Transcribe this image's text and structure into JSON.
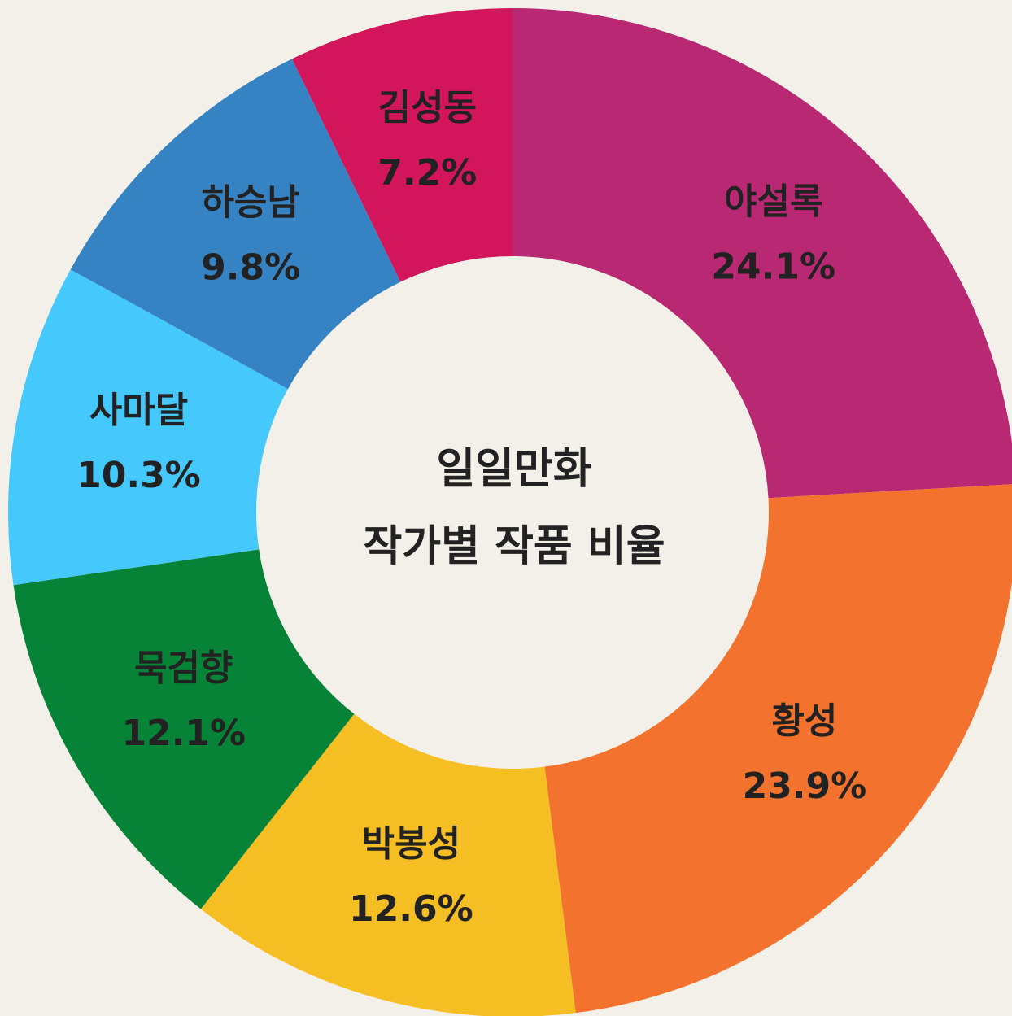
{
  "chart_data": {
    "type": "donut",
    "title_lines": [
      "일일만화",
      "작가별 작품 비율"
    ],
    "categories": [
      "야설록",
      "황성",
      "박봉성",
      "묵검향",
      "사마달",
      "하승남",
      "김성동"
    ],
    "values": [
      24.1,
      23.9,
      12.6,
      12.1,
      10.3,
      9.8,
      7.2
    ],
    "value_labels": [
      "24.1%",
      "23.9%",
      "12.6%",
      "12.1%",
      "10.3%",
      "9.8%",
      "7.2%"
    ],
    "colors": [
      "#b92873",
      "#f2722e",
      "#f5be22",
      "#078337",
      "#45c8fb",
      "#3683c4",
      "#d3155b"
    ]
  }
}
